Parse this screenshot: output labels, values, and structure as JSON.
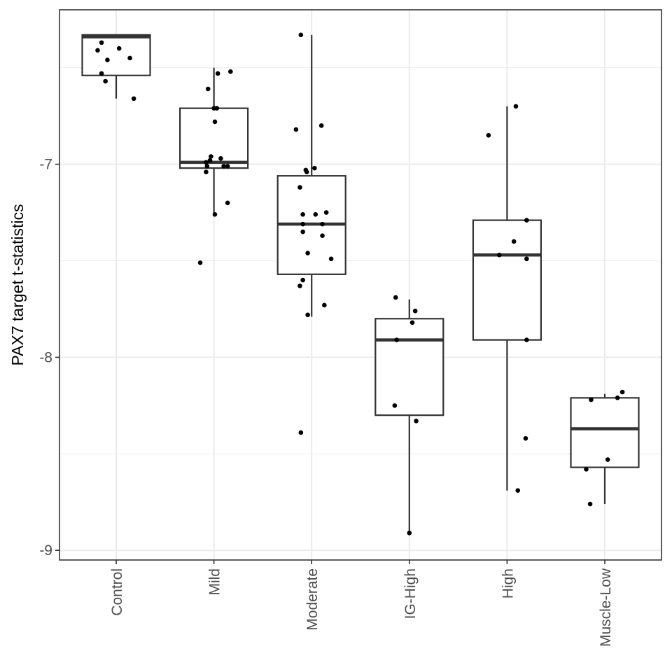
{
  "chart_data": {
    "type": "box",
    "title": "",
    "xlabel": "",
    "ylabel": "PAX7 target t-statistics",
    "ylim": [
      -9.05,
      -6.2
    ],
    "yticks": [
      -9,
      -8,
      -7
    ],
    "ytick_labels": [
      "-9",
      "-8",
      "-7"
    ],
    "grid": true,
    "legend": "none",
    "categories": [
      "Control",
      "Mild",
      "Moderate",
      "IG-High",
      "High",
      "Muscle-Low"
    ],
    "boxes": [
      {
        "category": "Control",
        "lower_whisker": -6.66,
        "q1": -6.54,
        "median": -6.34,
        "q3": -6.33,
        "upper_whisker": -6.33
      },
      {
        "category": "Mild",
        "lower_whisker": -7.27,
        "q1": -7.02,
        "median": -6.99,
        "q3": -6.71,
        "upper_whisker": -6.5
      },
      {
        "category": "Moderate",
        "lower_whisker": -7.79,
        "q1": -7.57,
        "median": -7.31,
        "q3": -7.06,
        "upper_whisker": -6.33
      },
      {
        "category": "IG-High",
        "lower_whisker": -8.92,
        "q1": -8.3,
        "median": -7.91,
        "q3": -7.8,
        "upper_whisker": -7.7
      },
      {
        "category": "High",
        "lower_whisker": -8.69,
        "q1": -7.91,
        "median": -7.47,
        "q3": -7.29,
        "upper_whisker": -6.7
      },
      {
        "category": "Muscle-Low",
        "lower_whisker": -8.76,
        "q1": -8.57,
        "median": -8.37,
        "q3": -8.21,
        "upper_whisker": -8.19
      }
    ],
    "points": [
      {
        "category": "Control",
        "x_jitter": -0.19,
        "y": -6.41
      },
      {
        "category": "Control",
        "x_jitter": -0.15,
        "y": -6.37
      },
      {
        "category": "Control",
        "x_jitter": -0.15,
        "y": -6.53
      },
      {
        "category": "Control",
        "x_jitter": -0.09,
        "y": -6.46
      },
      {
        "category": "Control",
        "x_jitter": -0.11,
        "y": -6.57
      },
      {
        "category": "Control",
        "x_jitter": 0.03,
        "y": -6.4
      },
      {
        "category": "Control",
        "x_jitter": 0.14,
        "y": -6.45
      },
      {
        "category": "Control",
        "x_jitter": 0.18,
        "y": -6.66
      },
      {
        "category": "Mild",
        "x_jitter": -0.06,
        "y": -6.61
      },
      {
        "category": "Mild",
        "x_jitter": 0.04,
        "y": -6.53
      },
      {
        "category": "Mild",
        "x_jitter": 0.17,
        "y": -6.52
      },
      {
        "category": "Mild",
        "x_jitter": 0.0,
        "y": -6.71
      },
      {
        "category": "Mild",
        "x_jitter": 0.03,
        "y": -6.71
      },
      {
        "category": "Mild",
        "x_jitter": 0.01,
        "y": -6.78
      },
      {
        "category": "Mild",
        "x_jitter": -0.04,
        "y": -6.98
      },
      {
        "category": "Mild",
        "x_jitter": -0.03,
        "y": -6.96
      },
      {
        "category": "Mild",
        "x_jitter": -0.08,
        "y": -6.99
      },
      {
        "category": "Mild",
        "x_jitter": -0.07,
        "y": -7.01
      },
      {
        "category": "Mild",
        "x_jitter": 0.07,
        "y": -6.97
      },
      {
        "category": "Mild",
        "x_jitter": 0.1,
        "y": -7.01
      },
      {
        "category": "Mild",
        "x_jitter": 0.14,
        "y": -7.01
      },
      {
        "category": "Mild",
        "x_jitter": -0.08,
        "y": -7.04
      },
      {
        "category": "Mild",
        "x_jitter": 0.14,
        "y": -7.2
      },
      {
        "category": "Mild",
        "x_jitter": 0.01,
        "y": -7.26
      },
      {
        "category": "Mild",
        "x_jitter": -0.14,
        "y": -7.51
      },
      {
        "category": "Moderate",
        "x_jitter": -0.11,
        "y": -6.33
      },
      {
        "category": "Moderate",
        "x_jitter": -0.16,
        "y": -6.82
      },
      {
        "category": "Moderate",
        "x_jitter": 0.1,
        "y": -6.8
      },
      {
        "category": "Moderate",
        "x_jitter": -0.06,
        "y": -7.03
      },
      {
        "category": "Moderate",
        "x_jitter": -0.05,
        "y": -7.04
      },
      {
        "category": "Moderate",
        "x_jitter": 0.03,
        "y": -7.02
      },
      {
        "category": "Moderate",
        "x_jitter": -0.12,
        "y": -7.12
      },
      {
        "category": "Moderate",
        "x_jitter": -0.09,
        "y": -7.26
      },
      {
        "category": "Moderate",
        "x_jitter": 0.04,
        "y": -7.26
      },
      {
        "category": "Moderate",
        "x_jitter": 0.15,
        "y": -7.25
      },
      {
        "category": "Moderate",
        "x_jitter": -0.09,
        "y": -7.31
      },
      {
        "category": "Moderate",
        "x_jitter": 0.11,
        "y": -7.31
      },
      {
        "category": "Moderate",
        "x_jitter": -0.09,
        "y": -7.35
      },
      {
        "category": "Moderate",
        "x_jitter": 0.11,
        "y": -7.37
      },
      {
        "category": "Moderate",
        "x_jitter": -0.04,
        "y": -7.46
      },
      {
        "category": "Moderate",
        "x_jitter": 0.2,
        "y": -7.49
      },
      {
        "category": "Moderate",
        "x_jitter": -0.09,
        "y": -7.6
      },
      {
        "category": "Moderate",
        "x_jitter": -0.12,
        "y": -7.63
      },
      {
        "category": "Moderate",
        "x_jitter": 0.13,
        "y": -7.73
      },
      {
        "category": "Moderate",
        "x_jitter": -0.04,
        "y": -7.78
      },
      {
        "category": "Moderate",
        "x_jitter": -0.11,
        "y": -8.39
      },
      {
        "category": "IG-High",
        "x_jitter": -0.14,
        "y": -7.69
      },
      {
        "category": "IG-High",
        "x_jitter": 0.06,
        "y": -7.76
      },
      {
        "category": "IG-High",
        "x_jitter": 0.03,
        "y": -7.82
      },
      {
        "category": "IG-High",
        "x_jitter": -0.13,
        "y": -7.91
      },
      {
        "category": "IG-High",
        "x_jitter": -0.15,
        "y": -8.25
      },
      {
        "category": "IG-High",
        "x_jitter": 0.07,
        "y": -8.33
      },
      {
        "category": "IG-High",
        "x_jitter": 0.0,
        "y": -8.91
      },
      {
        "category": "High",
        "x_jitter": 0.09,
        "y": -6.7
      },
      {
        "category": "High",
        "x_jitter": -0.19,
        "y": -6.85
      },
      {
        "category": "High",
        "x_jitter": 0.2,
        "y": -7.29
      },
      {
        "category": "High",
        "x_jitter": 0.07,
        "y": -7.4
      },
      {
        "category": "High",
        "x_jitter": -0.08,
        "y": -7.47
      },
      {
        "category": "High",
        "x_jitter": 0.2,
        "y": -7.49
      },
      {
        "category": "High",
        "x_jitter": 0.2,
        "y": -7.91
      },
      {
        "category": "High",
        "x_jitter": 0.19,
        "y": -8.42
      },
      {
        "category": "High",
        "x_jitter": 0.11,
        "y": -8.69
      },
      {
        "category": "Muscle-Low",
        "x_jitter": 0.18,
        "y": -8.18
      },
      {
        "category": "Muscle-Low",
        "x_jitter": 0.13,
        "y": -8.21
      },
      {
        "category": "Muscle-Low",
        "x_jitter": -0.14,
        "y": -8.22
      },
      {
        "category": "Muscle-Low",
        "x_jitter": 0.03,
        "y": -8.53
      },
      {
        "category": "Muscle-Low",
        "x_jitter": -0.19,
        "y": -8.58
      },
      {
        "category": "Muscle-Low",
        "x_jitter": -0.15,
        "y": -8.76
      }
    ],
    "colors": {
      "box_stroke": "#333333",
      "box_fill": "#ffffff",
      "point": "#000000",
      "grid": "#ebebeb",
      "panel_border": "#333333",
      "tick_label": "#4d4d4d",
      "axis_title": "#000000"
    }
  }
}
